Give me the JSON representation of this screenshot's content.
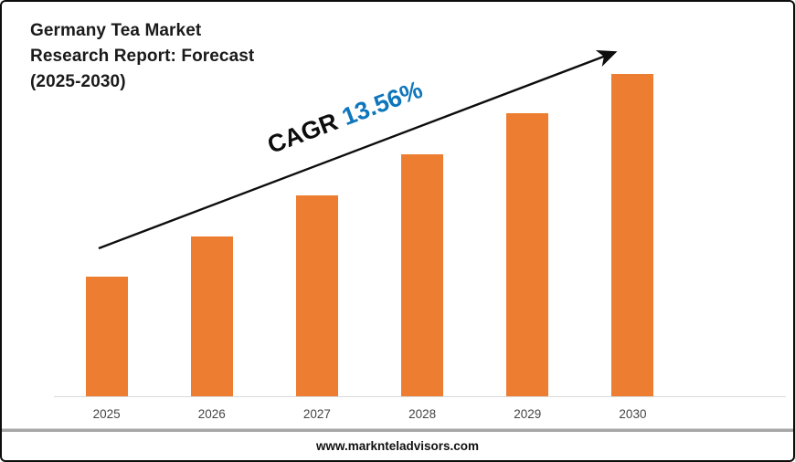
{
  "header": {
    "title_lines": [
      "Germany Tea Market",
      "Research Report: Forecast",
      "(2025-2030)"
    ]
  },
  "cagr": {
    "label": "CAGR",
    "value": "13.56%"
  },
  "footer": {
    "website": "www.marknteladvisors.com"
  },
  "colors": {
    "bar_orange": "#ED7D31",
    "cagr_value_blue": "#0E76BC",
    "arrow_black": "#0d0d0d",
    "axis_gray": "#D9D9D9",
    "separator_gray": "#A6A6A6"
  },
  "chart_data": {
    "type": "bar",
    "title": "Germany Tea Market Research Report: Forecast (2025-2030)",
    "categories": [
      "2025",
      "2026",
      "2027",
      "2028",
      "2029",
      "2030"
    ],
    "values": [
      132,
      176,
      221,
      266,
      311,
      354
    ],
    "value_note": "no y-axis shown; values are relative bar heights (linear increase year over year)",
    "xlabel": "",
    "ylabel": "",
    "ylim": [
      0,
      433
    ],
    "grid": false,
    "legend": false,
    "annotations": [
      "CAGR 13.56% along upward trend arrow"
    ]
  }
}
